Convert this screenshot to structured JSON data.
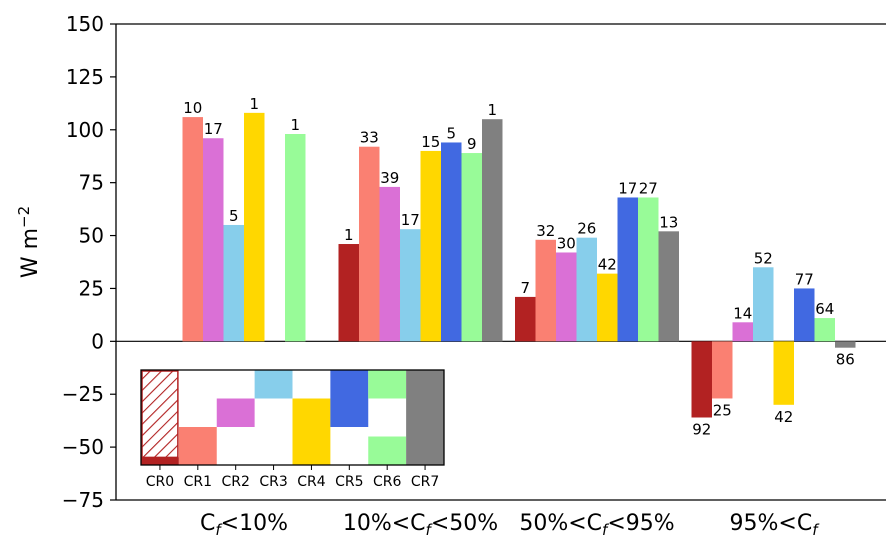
{
  "chart_data": {
    "type": "bar",
    "ylabel": "W m",
    "ylabel_sup": "−2",
    "ylim": [
      -75,
      150
    ],
    "yticks": [
      150,
      125,
      100,
      75,
      50,
      25,
      0,
      -25,
      -50,
      -75
    ],
    "ytick_labels": [
      "150",
      "125",
      "100",
      "75",
      "50",
      "25",
      "0",
      "−25",
      "−50",
      "−75"
    ],
    "categories": [
      {
        "pre": "C",
        "sub": "f",
        "post": "<10%"
      },
      {
        "pre": "10%<C",
        "sub": "f",
        "post": "<50%"
      },
      {
        "pre": "50%<C",
        "sub": "f",
        "post": "<95%"
      },
      {
        "pre": "95%<C",
        "sub": "f",
        "post": ""
      }
    ],
    "series": [
      {
        "name": "CR0",
        "color": "#b22222",
        "values": [
          null,
          46,
          21,
          -36
        ],
        "labels": [
          "",
          "1",
          "7",
          "92"
        ]
      },
      {
        "name": "CR1",
        "color": "#fa8072",
        "values": [
          106,
          92,
          48,
          -27
        ],
        "labels": [
          "10",
          "33",
          "32",
          "25"
        ]
      },
      {
        "name": "CR2",
        "color": "#da70d6",
        "values": [
          96,
          73,
          42,
          9
        ],
        "labels": [
          "17",
          "39",
          "30",
          "14"
        ]
      },
      {
        "name": "CR3",
        "color": "#87ceeb",
        "values": [
          55,
          53,
          49,
          35
        ],
        "labels": [
          "5",
          "17",
          "26",
          "52"
        ]
      },
      {
        "name": "CR4",
        "color": "#ffd700",
        "values": [
          108,
          90,
          32,
          -30
        ],
        "labels": [
          "1",
          "15",
          "42",
          "42"
        ]
      },
      {
        "name": "CR5",
        "color": "#4169e1",
        "values": [
          null,
          94,
          68,
          25
        ],
        "labels": [
          "",
          "5",
          "17",
          "77"
        ]
      },
      {
        "name": "CR6",
        "color": "#98fb98",
        "values": [
          98,
          89,
          68,
          11
        ],
        "labels": [
          "1",
          "9",
          "27",
          "64"
        ]
      },
      {
        "name": "CR7",
        "color": "#808080",
        "values": [
          null,
          105,
          52,
          -3
        ],
        "labels": [
          "",
          "1",
          "13",
          "86"
        ]
      }
    ],
    "inset": {
      "labels": [
        "CR0",
        "CR1",
        "CR2",
        "CR3",
        "CR4",
        "CR5",
        "CR6",
        "CR7"
      ],
      "cells": [
        [
          [
            0.0,
            0.08
          ]
        ],
        [
          [
            0.0,
            0.4
          ]
        ],
        [
          [
            0.4,
            0.7
          ]
        ],
        [
          [
            0.7,
            1.0
          ]
        ],
        [
          [
            0.0,
            0.7
          ]
        ],
        [
          [
            0.4,
            1.0
          ]
        ],
        [
          [
            0.7,
            1.0
          ],
          [
            0.0,
            0.3
          ]
        ],
        [
          [
            0.0,
            1.0
          ]
        ]
      ],
      "hatched_index": 0
    },
    "legend": "none",
    "grid": false
  }
}
